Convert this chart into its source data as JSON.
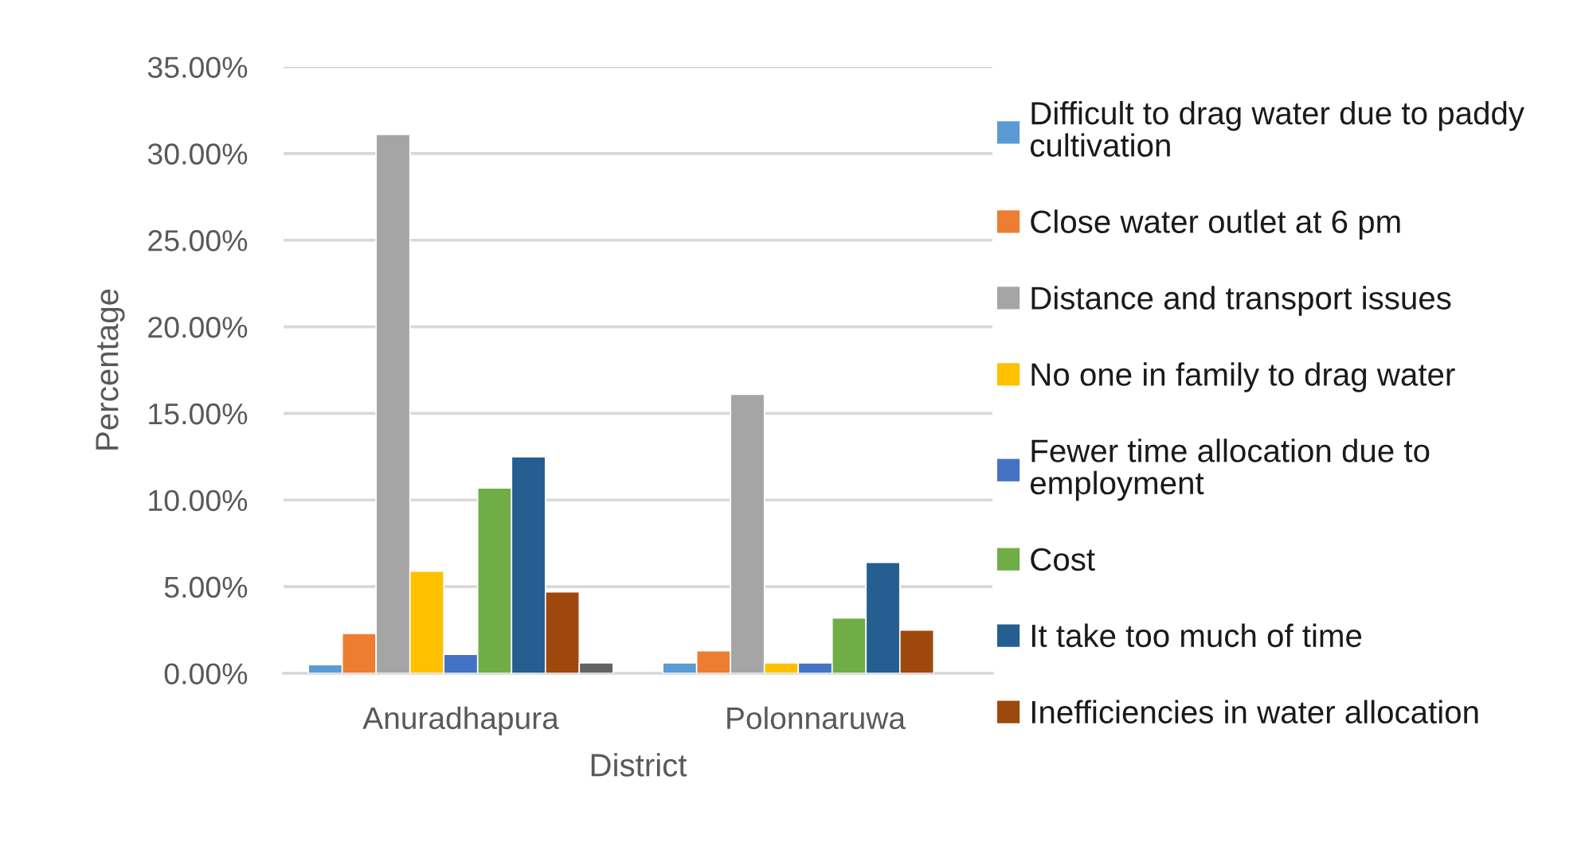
{
  "chart_data": {
    "type": "bar",
    "xlabel": "District",
    "ylabel": "Percentage",
    "categories": [
      "Anuradhapura",
      "Polonnaruwa"
    ],
    "series": [
      {
        "name": "Difficult to drag water due to paddy cultivation",
        "color": "#5b9bd5",
        "values": [
          0.5,
          0.6
        ]
      },
      {
        "name": "Close water outlet at 6 pm",
        "color": "#ed7d31",
        "values": [
          2.3,
          1.3
        ]
      },
      {
        "name": "Distance and transport issues",
        "color": "#a5a5a5",
        "values": [
          31.1,
          16.1
        ]
      },
      {
        "name": "No one in family to drag water",
        "color": "#ffc000",
        "values": [
          5.9,
          0.6
        ]
      },
      {
        "name": "Fewer time allocation due to employment",
        "color": "#4472c4",
        "values": [
          1.1,
          0.6
        ]
      },
      {
        "name": "Cost",
        "color": "#70ad47",
        "values": [
          10.7,
          3.2
        ]
      },
      {
        "name": "It take too much of time",
        "color": "#255e91",
        "values": [
          12.5,
          6.4
        ]
      },
      {
        "name": "Inefficiencies in water allocation",
        "color": "#9e480e",
        "values": [
          4.7,
          2.5
        ]
      },
      {
        "color": "#636363",
        "values": [
          0.6,
          null
        ]
      }
    ],
    "ylim": [
      0,
      35
    ],
    "yticks": [
      {
        "value": 0,
        "label": "0.00%"
      },
      {
        "value": 5,
        "label": "5.00%"
      },
      {
        "value": 10,
        "label": "10.00%"
      },
      {
        "value": 15,
        "label": "15.00%"
      },
      {
        "value": 20,
        "label": "20.00%"
      },
      {
        "value": 25,
        "label": "25.00%"
      },
      {
        "value": 30,
        "label": "30.00%"
      },
      {
        "value": 35,
        "label": "35.00%"
      }
    ],
    "grid": "y",
    "legend": "right"
  }
}
